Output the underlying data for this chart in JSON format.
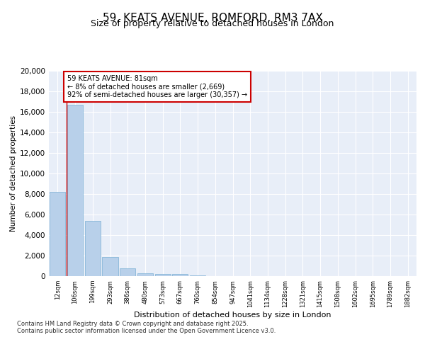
{
  "title_line1": "59, KEATS AVENUE, ROMFORD, RM3 7AX",
  "title_line2": "Size of property relative to detached houses in London",
  "xlabel": "Distribution of detached houses by size in London",
  "ylabel": "Number of detached properties",
  "categories": [
    "12sqm",
    "106sqm",
    "199sqm",
    "293sqm",
    "386sqm",
    "480sqm",
    "573sqm",
    "667sqm",
    "760sqm",
    "854sqm",
    "947sqm",
    "1041sqm",
    "1134sqm",
    "1228sqm",
    "1321sqm",
    "1415sqm",
    "1508sqm",
    "1602sqm",
    "1695sqm",
    "1789sqm",
    "1882sqm"
  ],
  "values": [
    8200,
    16700,
    5400,
    1850,
    750,
    300,
    225,
    175,
    100,
    0,
    0,
    0,
    0,
    0,
    0,
    0,
    0,
    0,
    0,
    0,
    0
  ],
  "bar_color": "#b8d0ea",
  "bar_edge_color": "#7aafd4",
  "vline_x": 0.5,
  "vline_color": "#cc0000",
  "annotation_text": "59 KEATS AVENUE: 81sqm\n← 8% of detached houses are smaller (2,669)\n92% of semi-detached houses are larger (30,357) →",
  "annotation_box_color": "#cc0000",
  "ylim": [
    0,
    20000
  ],
  "yticks": [
    0,
    2000,
    4000,
    6000,
    8000,
    10000,
    12000,
    14000,
    16000,
    18000,
    20000
  ],
  "fig_bg_color": "#ffffff",
  "plot_bg_color": "#e8eef8",
  "grid_color": "#ffffff",
  "footer_line1": "Contains HM Land Registry data © Crown copyright and database right 2025.",
  "footer_line2": "Contains public sector information licensed under the Open Government Licence v3.0."
}
